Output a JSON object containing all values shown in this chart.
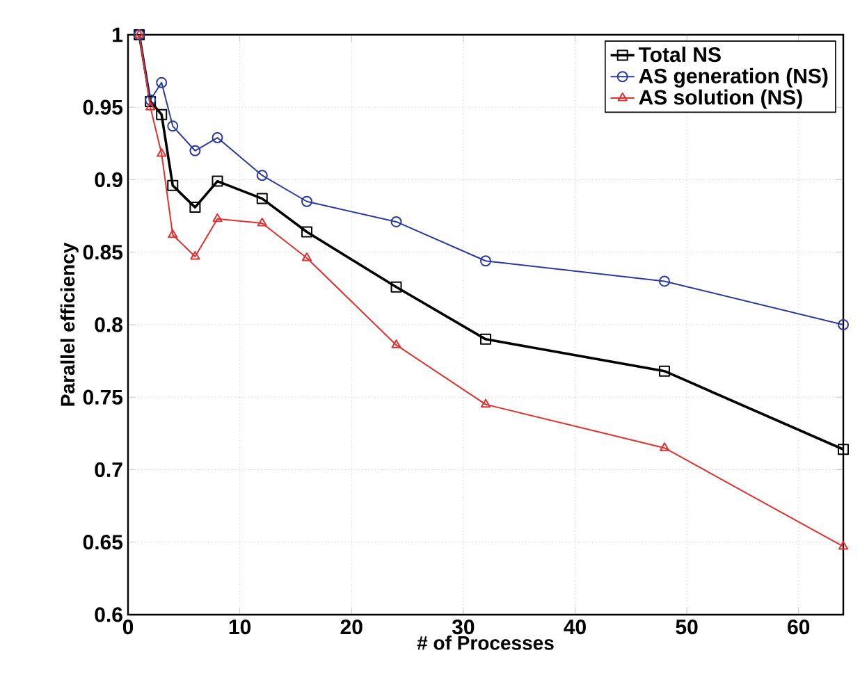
{
  "chart_data": {
    "type": "line",
    "xlabel": "# of Processes",
    "ylabel": "Parallel efficiency",
    "x": [
      1,
      2,
      3,
      4,
      6,
      8,
      12,
      16,
      24,
      32,
      48,
      64
    ],
    "series": [
      {
        "name": "Total NS",
        "color": "#000000",
        "marker": "square",
        "values": [
          1.0,
          0.954,
          0.945,
          0.896,
          0.881,
          0.899,
          0.887,
          0.864,
          0.826,
          0.79,
          0.768,
          0.714
        ]
      },
      {
        "name": "AS generation (NS)",
        "color": "#2b3a99",
        "marker": "circle",
        "values": [
          1.0,
          0.955,
          0.967,
          0.937,
          0.92,
          0.929,
          0.903,
          0.885,
          0.871,
          0.844,
          0.83,
          0.8
        ]
      },
      {
        "name": "AS solution (NS)",
        "color": "#e03030",
        "marker": "triangle",
        "values": [
          1.0,
          0.95,
          0.918,
          0.862,
          0.847,
          0.873,
          0.87,
          0.846,
          0.786,
          0.745,
          0.715,
          0.647
        ]
      }
    ],
    "xlim": [
      0,
      64
    ],
    "xticks": [
      0,
      10,
      20,
      30,
      40,
      50,
      60
    ],
    "ylim": [
      0.6,
      1
    ],
    "yticks": [
      0.6,
      0.65,
      0.7,
      0.75,
      0.8,
      0.85,
      0.9,
      0.95,
      1
    ],
    "grid": true,
    "legend": "top right",
    "line_style": "solid"
  }
}
